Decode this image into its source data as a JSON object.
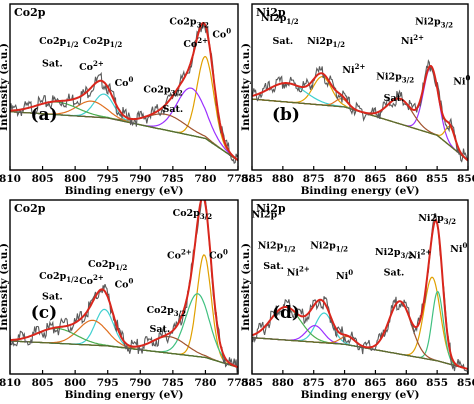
{
  "chart_data": [
    {
      "panel": "(a)",
      "title": "Co2p",
      "type": "line",
      "xlabel": "Binding energy (eV)",
      "ylabel": "Intensity (a.u.)",
      "xlim": [
        810,
        775
      ],
      "xticks": [
        810,
        805,
        800,
        795,
        790,
        785,
        780,
        775
      ],
      "ylim": [
        0,
        1
      ],
      "colors": {
        "data": "#5a5a5a",
        "fit": "#d9261c",
        "background": "#556b2f"
      },
      "peaks": [
        {
          "center": 780.0,
          "amp": 0.52,
          "width": 1.3,
          "color": "#e0a000"
        },
        {
          "center": 782.2,
          "amp": 0.3,
          "width": 2.2,
          "color": "#9b30ff"
        },
        {
          "center": 786.0,
          "amp": 0.1,
          "width": 3.0,
          "color": "#a0522d"
        },
        {
          "center": 795.6,
          "amp": 0.15,
          "width": 1.5,
          "color": "#40d0d0"
        },
        {
          "center": 797.5,
          "amp": 0.1,
          "width": 2.2,
          "color": "#e07020"
        },
        {
          "center": 802.8,
          "amp": 0.08,
          "width": 3.2,
          "color": "#4caf50"
        }
      ],
      "background_curve": {
        "x": [
          810,
          795,
          780,
          775
        ],
        "y": [
          0.37,
          0.33,
          0.2,
          0.06
        ]
      },
      "annotations": [
        {
          "text": "Co2p1/2",
          "x": 802.5,
          "y": 0.8
        },
        {
          "text": "Sat.",
          "x": 803.5,
          "y": 0.66
        },
        {
          "text": "Co2+",
          "x": 797.5,
          "y": 0.64
        },
        {
          "text": "Co2p1/2",
          "x": 795.8,
          "y": 0.8
        },
        {
          "text": "Co0",
          "x": 792.5,
          "y": 0.54
        },
        {
          "text": "Co2p3/2",
          "x": 786.5,
          "y": 0.5
        },
        {
          "text": "Sat.",
          "x": 785.0,
          "y": 0.38
        },
        {
          "text": "Co2+",
          "x": 781.5,
          "y": 0.78
        },
        {
          "text": "Co2p3/2",
          "x": 782.5,
          "y": 0.92
        },
        {
          "text": "Co0",
          "x": 777.5,
          "y": 0.84
        }
      ]
    },
    {
      "panel": "(b)",
      "title": "Ni2p",
      "type": "line",
      "xlabel": "Binding energy (eV)",
      "ylabel": "Intensity (a.u.)",
      "xlim": [
        885,
        850
      ],
      "xticks": [
        885,
        880,
        875,
        870,
        865,
        860,
        855,
        850
      ],
      "ylim": [
        0,
        1
      ],
      "colors": {
        "data": "#5a5a5a",
        "fit": "#d9261c",
        "background": "#556b2f"
      },
      "peaks": [
        {
          "center": 856.0,
          "amp": 0.42,
          "width": 1.2,
          "color": "#9b30ff"
        },
        {
          "center": 852.9,
          "amp": 0.12,
          "width": 0.8,
          "color": "#e0a000"
        },
        {
          "center": 861.0,
          "amp": 0.16,
          "width": 2.0,
          "color": "#a0522d"
        },
        {
          "center": 873.6,
          "amp": 0.18,
          "width": 1.5,
          "color": "#e0a000"
        },
        {
          "center": 879.3,
          "amp": 0.12,
          "width": 3.0,
          "color": "#40d0d0"
        },
        {
          "center": 870.5,
          "amp": 0.05,
          "width": 1.0,
          "color": "#e07020"
        }
      ],
      "background_curve": {
        "x": [
          885,
          870,
          855,
          850
        ],
        "y": [
          0.45,
          0.4,
          0.22,
          0.06
        ]
      },
      "annotations": [
        {
          "text": "Ni2p1/2",
          "x": 880.5,
          "y": 0.94
        },
        {
          "text": "Sat.",
          "x": 880.0,
          "y": 0.8
        },
        {
          "text": "Ni2p1/2",
          "x": 873.0,
          "y": 0.8
        },
        {
          "text": "Ni2+",
          "x": 868.5,
          "y": 0.62
        },
        {
          "text": "Ni2p3/2",
          "x": 861.8,
          "y": 0.58
        },
        {
          "text": "Sat.",
          "x": 862.0,
          "y": 0.45
        },
        {
          "text": "Ni2+",
          "x": 859.0,
          "y": 0.8
        },
        {
          "text": "Ni2p3/2",
          "x": 855.5,
          "y": 0.92
        },
        {
          "text": "Ni0",
          "x": 851.0,
          "y": 0.55
        }
      ]
    },
    {
      "panel": "(c)",
      "title": "Co2p",
      "type": "line",
      "xlabel": "Binding energy (eV)",
      "ylabel": "Intensity (a.u.)",
      "xlim": [
        810,
        775
      ],
      "xticks": [
        810,
        805,
        800,
        795,
        790,
        785,
        780,
        775
      ],
      "ylim": [
        0,
        1
      ],
      "colors": {
        "data": "#5a5a5a",
        "fit": "#d9261c",
        "background": "#556b2f"
      },
      "peaks": [
        {
          "center": 780.2,
          "amp": 0.62,
          "width": 1.1,
          "color": "#e0a000"
        },
        {
          "center": 781.2,
          "amp": 0.38,
          "width": 1.8,
          "color": "#40c080"
        },
        {
          "center": 785.5,
          "amp": 0.1,
          "width": 2.6,
          "color": "#a0522d"
        },
        {
          "center": 795.5,
          "amp": 0.22,
          "width": 1.4,
          "color": "#40d0d0"
        },
        {
          "center": 797.3,
          "amp": 0.15,
          "width": 2.2,
          "color": "#e07020"
        },
        {
          "center": 802.8,
          "amp": 0.09,
          "width": 3.0,
          "color": "#4caf50"
        }
      ],
      "background_curve": {
        "x": [
          810,
          795,
          780,
          775
        ],
        "y": [
          0.2,
          0.17,
          0.1,
          0.04
        ]
      },
      "annotations": [
        {
          "text": "Co2p3/2",
          "x": 782.0,
          "y": 0.95
        },
        {
          "text": "Co2p1/2",
          "x": 802.5,
          "y": 0.58
        },
        {
          "text": "Sat.",
          "x": 803.5,
          "y": 0.46
        },
        {
          "text": "Co2+",
          "x": 797.5,
          "y": 0.55
        },
        {
          "text": "Co2p1/2",
          "x": 795.0,
          "y": 0.65
        },
        {
          "text": "Co0",
          "x": 792.5,
          "y": 0.53
        },
        {
          "text": "Co2+",
          "x": 784.0,
          "y": 0.7
        },
        {
          "text": "Co0",
          "x": 778.0,
          "y": 0.7
        },
        {
          "text": "Co2p3/2",
          "x": 786.0,
          "y": 0.38
        },
        {
          "text": "Sat.",
          "x": 787.0,
          "y": 0.27
        }
      ]
    },
    {
      "panel": "(d)",
      "title": "Ni2p",
      "type": "line",
      "xlabel": "Binding energy (eV)",
      "ylabel": "Intensity (a.u.)",
      "xlim": [
        885,
        850
      ],
      "xticks": [
        885,
        880,
        875,
        870,
        865,
        860,
        855,
        850
      ],
      "ylim": [
        0,
        1
      ],
      "colors": {
        "data": "#5a5a5a",
        "fit": "#d9261c",
        "background": "#556b2f"
      },
      "peaks": [
        {
          "center": 855.8,
          "amp": 0.5,
          "width": 1.3,
          "color": "#e0a000"
        },
        {
          "center": 854.9,
          "amp": 0.42,
          "width": 0.9,
          "color": "#40c080"
        },
        {
          "center": 861.0,
          "amp": 0.32,
          "width": 1.8,
          "color": "#a0522d"
        },
        {
          "center": 873.3,
          "amp": 0.18,
          "width": 1.4,
          "color": "#40d0d0"
        },
        {
          "center": 874.8,
          "amp": 0.1,
          "width": 1.4,
          "color": "#9b30ff"
        },
        {
          "center": 879.5,
          "amp": 0.2,
          "width": 2.4,
          "color": "#4caf50"
        },
        {
          "center": 869.5,
          "amp": 0.05,
          "width": 1.2,
          "color": "#e07020"
        }
      ],
      "background_curve": {
        "x": [
          885,
          870,
          855,
          850
        ],
        "y": [
          0.22,
          0.18,
          0.08,
          0.03
        ]
      },
      "annotations": [
        {
          "text": "Ni2p",
          "x": 883.0,
          "y": 0.94
        },
        {
          "text": "Ni2p1/2",
          "x": 881.0,
          "y": 0.76
        },
        {
          "text": "Sat.",
          "x": 881.5,
          "y": 0.64
        },
        {
          "text": "Ni2+",
          "x": 877.5,
          "y": 0.6
        },
        {
          "text": "Ni2p1/2",
          "x": 872.5,
          "y": 0.76
        },
        {
          "text": "Ni0",
          "x": 870.0,
          "y": 0.58
        },
        {
          "text": "Ni2p3/2",
          "x": 862.0,
          "y": 0.72
        },
        {
          "text": "Sat.",
          "x": 862.0,
          "y": 0.6
        },
        {
          "text": "Ni2+",
          "x": 857.8,
          "y": 0.7
        },
        {
          "text": "Ni2p3/2",
          "x": 855.0,
          "y": 0.92
        },
        {
          "text": "Ni0",
          "x": 851.5,
          "y": 0.74
        }
      ]
    }
  ]
}
